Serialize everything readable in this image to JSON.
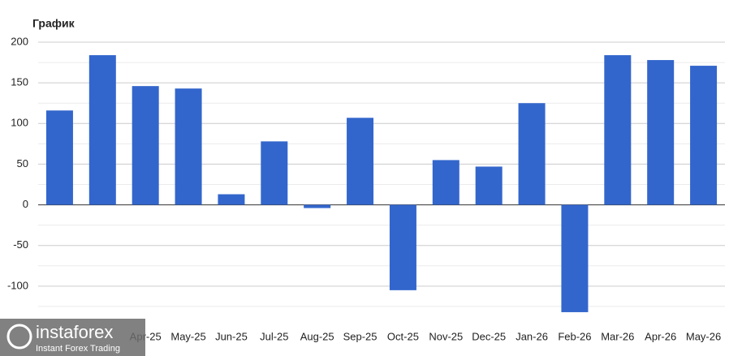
{
  "chart_data": {
    "type": "bar",
    "title": "График",
    "categories": [
      null,
      null,
      "Apr-25",
      "May-25",
      "Jun-25",
      "Jul-25",
      "Aug-25",
      "Sep-25",
      "Oct-25",
      "Nov-25",
      "Dec-25",
      "Jan-26",
      "Feb-26",
      "Mar-26",
      "Apr-26",
      "May-26"
    ],
    "values": [
      116,
      184,
      146,
      143,
      13,
      78,
      -4,
      107,
      -105,
      55,
      47,
      125,
      -132,
      184,
      178,
      171
    ],
    "color": "#3366cc",
    "ylim": [
      -150,
      200
    ],
    "yticks": [
      -100,
      -50,
      0,
      50,
      100,
      150,
      200
    ],
    "minor_gridlines": [
      -125,
      -75,
      -25,
      25,
      75,
      125,
      175
    ],
    "grid": true
  },
  "watermark": {
    "brand": "instaforex",
    "tagline": "Instant Forex Trading"
  }
}
